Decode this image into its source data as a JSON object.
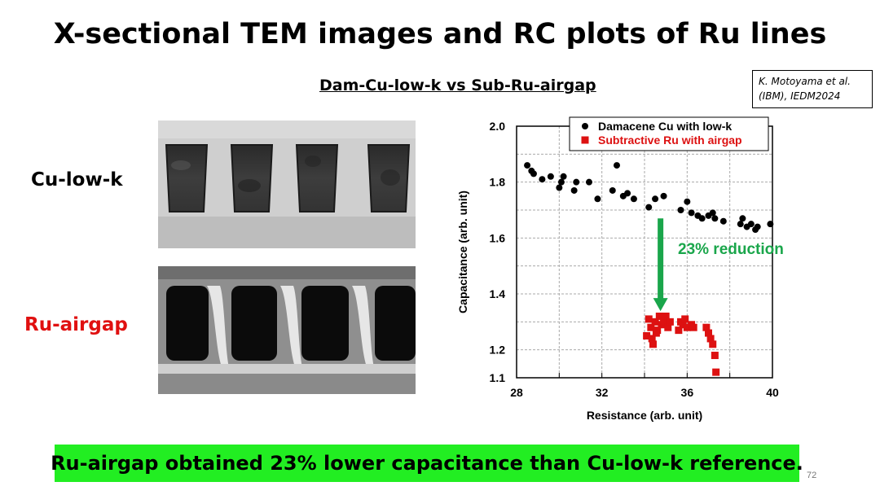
{
  "slide": {
    "title": "X-sectional TEM images and RC plots of Ru lines",
    "subtitle": "Dam-Cu-low-k vs Sub-Ru-airgap",
    "citation_line1": "K. Motoyama et al.",
    "citation_line2": "(IBM), IEDM2024",
    "label_cu": "Cu-low-k",
    "label_ru": "Ru-airgap",
    "conclusion": "Ru-airgap obtained 23% lower capacitance than Cu-low-k reference.",
    "page_number": "72"
  },
  "colors": {
    "damascene": "#000000",
    "subtractive": "#dd1111",
    "arrow": "#1aa64b",
    "conclusion_bg": "#22ee22",
    "ru_label": "#e01010"
  },
  "chart_data": {
    "type": "scatter",
    "xlabel": "Resistance (arb. unit)",
    "ylabel": "Capacitance (arb. unit)",
    "xlim": [
      28,
      40
    ],
    "ylim": [
      1.1,
      2.0
    ],
    "x_ticks": [
      "28",
      "32",
      "36",
      "40"
    ],
    "y_ticks": [
      "1.1",
      "1.2",
      "1.4",
      "1.6",
      "1.8",
      "2.0"
    ],
    "grid": true,
    "legend_position": "top-right",
    "annotation": "23% reduction",
    "series": [
      {
        "name": "Damacene Cu with low-k",
        "marker": "circle",
        "points": [
          [
            28.5,
            1.86
          ],
          [
            28.7,
            1.84
          ],
          [
            28.8,
            1.83
          ],
          [
            29.2,
            1.81
          ],
          [
            29.6,
            1.82
          ],
          [
            30.0,
            1.78
          ],
          [
            30.1,
            1.8
          ],
          [
            30.2,
            1.82
          ],
          [
            30.7,
            1.77
          ],
          [
            30.8,
            1.8
          ],
          [
            31.4,
            1.8
          ],
          [
            31.8,
            1.74
          ],
          [
            32.5,
            1.77
          ],
          [
            32.7,
            1.86
          ],
          [
            33.0,
            1.75
          ],
          [
            33.2,
            1.76
          ],
          [
            33.5,
            1.74
          ],
          [
            34.2,
            1.71
          ],
          [
            34.5,
            1.74
          ],
          [
            34.9,
            1.75
          ],
          [
            35.7,
            1.7
          ],
          [
            36.0,
            1.73
          ],
          [
            36.2,
            1.69
          ],
          [
            36.5,
            1.68
          ],
          [
            36.7,
            1.67
          ],
          [
            37.0,
            1.68
          ],
          [
            37.2,
            1.69
          ],
          [
            37.3,
            1.67
          ],
          [
            37.7,
            1.66
          ],
          [
            38.5,
            1.65
          ],
          [
            38.6,
            1.67
          ],
          [
            38.8,
            1.64
          ],
          [
            39.0,
            1.65
          ],
          [
            39.2,
            1.63
          ],
          [
            39.3,
            1.64
          ],
          [
            39.9,
            1.65
          ]
        ]
      },
      {
        "name": "Subtractive Ru with airgap",
        "marker": "square",
        "points": [
          [
            34.1,
            1.25
          ],
          [
            34.2,
            1.31
          ],
          [
            34.3,
            1.28
          ],
          [
            34.35,
            1.24
          ],
          [
            34.4,
            1.22
          ],
          [
            34.5,
            1.3
          ],
          [
            34.6,
            1.27
          ],
          [
            34.7,
            1.32
          ],
          [
            34.8,
            1.29
          ],
          [
            34.9,
            1.3
          ],
          [
            35.0,
            1.32
          ],
          [
            35.1,
            1.28
          ],
          [
            35.2,
            1.3
          ],
          [
            34.55,
            1.26
          ],
          [
            35.6,
            1.27
          ],
          [
            35.7,
            1.3
          ],
          [
            35.8,
            1.29
          ],
          [
            35.9,
            1.31
          ],
          [
            36.0,
            1.28
          ],
          [
            36.2,
            1.29
          ],
          [
            36.3,
            1.28
          ],
          [
            36.9,
            1.28
          ],
          [
            37.0,
            1.26
          ],
          [
            37.1,
            1.24
          ],
          [
            37.2,
            1.22
          ],
          [
            37.3,
            1.18
          ],
          [
            37.35,
            1.12
          ]
        ]
      }
    ]
  }
}
